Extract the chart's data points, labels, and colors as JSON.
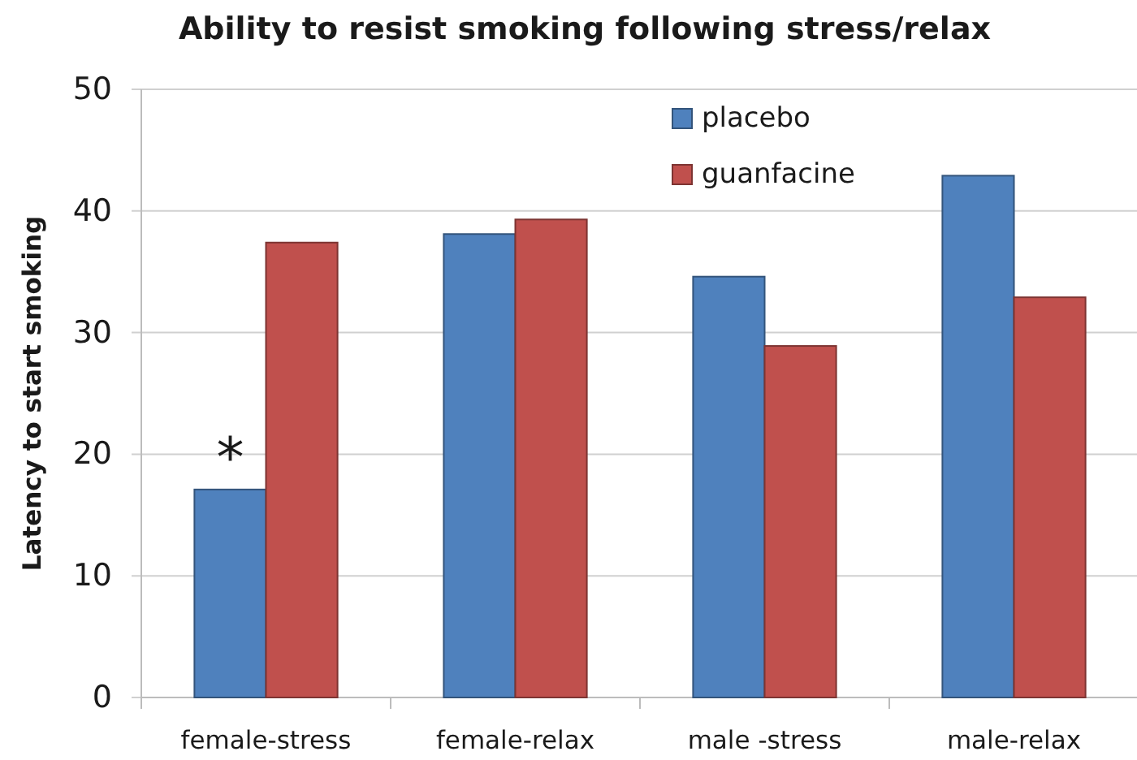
{
  "chart_data": {
    "type": "bar",
    "title": "Ability to resist smoking following stress/relax",
    "ylabel": "Latency to start smoking",
    "categories": [
      "female-stress",
      "female-relax",
      "male -stress",
      "male-relax"
    ],
    "series": [
      {
        "name": "placebo",
        "color": "#4f81bd",
        "values": [
          17.1,
          38.1,
          34.6,
          42.9
        ]
      },
      {
        "name": "guanfacine",
        "color": "#c0504d",
        "values": [
          37.4,
          39.3,
          28.9,
          32.9
        ]
      }
    ],
    "ylim": [
      0,
      50
    ],
    "yticks": [
      0,
      10,
      20,
      30,
      40,
      50
    ],
    "grid": "y",
    "legend": "top right",
    "annotations": [
      {
        "text": "*",
        "x": "female-stress",
        "y": 21.4
      }
    ]
  }
}
